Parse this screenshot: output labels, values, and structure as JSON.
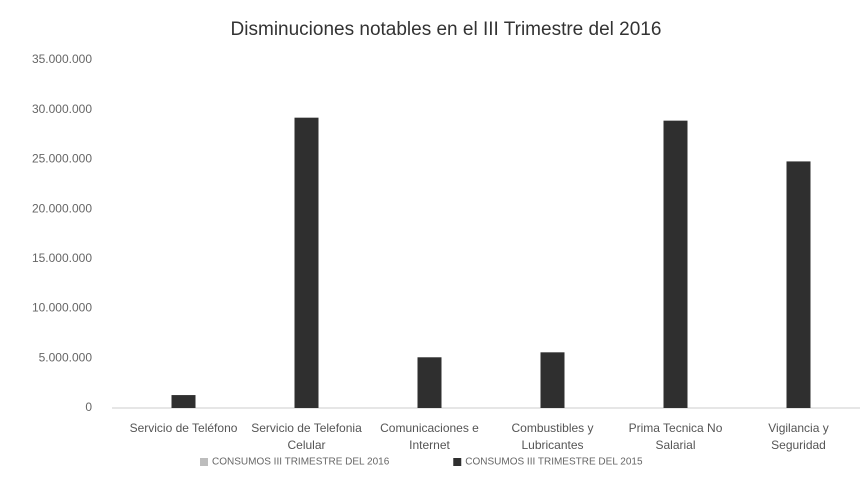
{
  "chart_data": {
    "type": "bar",
    "title": "Disminuciones notables en el III Trimestre del 2016",
    "categories": [
      "Servicio de Teléfono",
      "Servicio de Telefonia Celular",
      "Comunicaciones e Internet",
      "Combustibles y Lubricantes",
      "Prima Tecnica No Salarial",
      "Vigilancia y Seguridad"
    ],
    "series": [
      {
        "name": "CONSUMOS III TRIMESTRE DEL 2016",
        "color": "#bdbdbd",
        "values": [
          0,
          0,
          0,
          0,
          0,
          0
        ]
      },
      {
        "name": "CONSUMOS III TRIMESTRE DEL 2015",
        "color": "#2f2f2f",
        "values": [
          1300000,
          29200000,
          5100000,
          5600000,
          28900000,
          24800000
        ]
      }
    ],
    "ylim": [
      0,
      35000000
    ],
    "yticks": [
      0,
      {
        "value": 5000000,
        "label": "5.000.000"
      },
      {
        "value": 10000000,
        "label": "10.000.000"
      },
      {
        "value": 15000000,
        "label": "15.000.000"
      },
      {
        "value": 20000000,
        "label": "20.000.000"
      },
      {
        "value": 25000000,
        "label": "25.000.000"
      },
      {
        "value": 30000000,
        "label": "30.000.000"
      },
      {
        "value": 35000000,
        "label": "35.000.000"
      }
    ],
    "grid": false,
    "legend": "bottom"
  }
}
